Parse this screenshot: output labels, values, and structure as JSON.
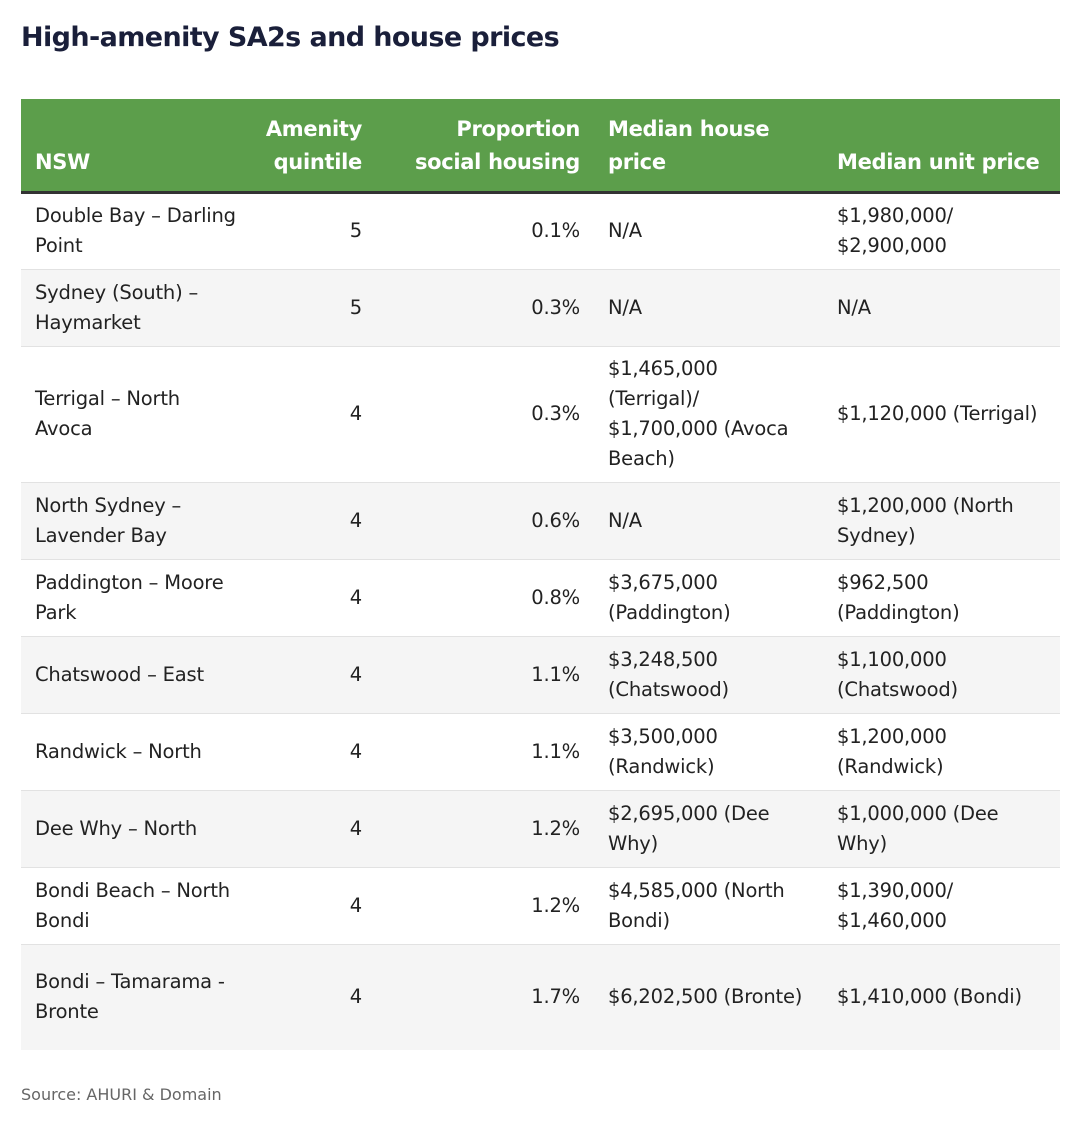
{
  "title": "High-amenity SA2s and house prices",
  "table": {
    "headers": [
      "NSW",
      "Amenity quintile",
      "Proportion social housing",
      "Median house price",
      "Median unit price"
    ],
    "rows": [
      [
        "Double Bay – Darling Point",
        "5",
        "0.1%",
        "N/A",
        "$1,980,000/ $2,900,000"
      ],
      [
        "Sydney (South) – Haymarket",
        "5",
        "0.3%",
        "N/A",
        "N/A"
      ],
      [
        "Terrigal – North Avoca",
        "4",
        "0.3%",
        "$1,465,000 (Terrigal)/ $1,700,000 (Avoca Beach)",
        "$1,120,000 (Terrigal)"
      ],
      [
        "North Sydney – Lavender Bay",
        "4",
        "0.6%",
        "N/A",
        "$1,200,000 (North Sydney)"
      ],
      [
        "Paddington – Moore Park",
        "4",
        "0.8%",
        "$3,675,000 (Paddington)",
        "$962,500 (Paddington)"
      ],
      [
        "Chatswood – East",
        "4",
        "1.1%",
        "$3,248,500 (Chatswood)",
        "$1,100,000 (Chatswood)"
      ],
      [
        "Randwick – North",
        "4",
        "1.1%",
        "$3,500,000 (Randwick)",
        "$1,200,000 (Randwick)"
      ],
      [
        "Dee Why – North",
        "4",
        "1.2%",
        "$2,695,000 (Dee Why)",
        "$1,000,000 (Dee Why)"
      ],
      [
        "Bondi Beach – North Bondi",
        "4",
        "1.2%",
        "$4,585,000 (North Bondi)",
        "$1,390,000/ $1,460,000"
      ],
      [
        "Bondi – Tamarama - Bronte",
        "4",
        "1.7%",
        "$6,202,500 (Bronte)",
        "$1,410,000 (Bondi)"
      ]
    ]
  },
  "source": "Source: AHURI & Domain",
  "colors": {
    "header_bg": "#5c9e4b",
    "title": "#1a1f3a",
    "stripe": "#f5f5f5"
  }
}
